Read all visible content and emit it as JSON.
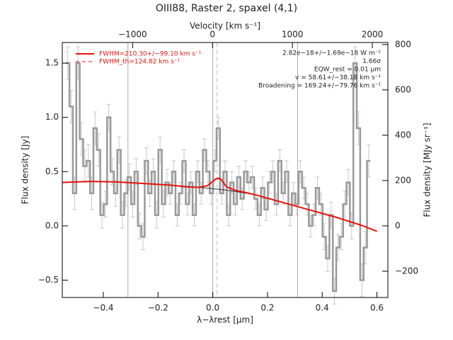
{
  "chart_data": {
    "type": "spectrum",
    "title": "OIII88, Raster 2, spaxel (4,1)",
    "xlabel": "λ−λrest [μm]",
    "ylabel": "Flux density [Jy]",
    "y2label": "Flux density [MJy sr⁻¹]",
    "x2label": "Velocity [km s⁻¹]",
    "xlim": [
      -0.55,
      0.64
    ],
    "ylim": [
      -0.66,
      1.69
    ],
    "y2lim": [
      -316,
      809
    ],
    "x2lim": [
      -1880,
      2195
    ],
    "xticks": [
      {
        "value": -0.4,
        "label": "−0.4"
      },
      {
        "value": -0.2,
        "label": "−0.2"
      },
      {
        "value": 0,
        "label": "0.0"
      },
      0.2,
      0.4,
      0.6
    ],
    "yticks": [
      {
        "value": -0.5,
        "label": "−0.5"
      },
      {
        "value": 0,
        "label": "0.0"
      },
      0.5,
      {
        "value": 1,
        "label": "1.0"
      },
      1.5
    ],
    "y2ticks": [
      {
        "value": -200,
        "label": "−200"
      },
      0,
      200,
      400,
      600,
      800
    ],
    "x2ticks": [
      {
        "value": -1000,
        "label": "−1000"
      },
      0,
      1000,
      2000
    ],
    "vlines": [
      -0.31,
      0,
      0.31
    ],
    "dashed_vline": 0.016,
    "spectrum": {
      "color": "#999999",
      "x": [
        -0.53,
        -0.5175,
        -0.505,
        -0.4925,
        -0.48,
        -0.4675,
        -0.455,
        -0.4425,
        -0.43,
        -0.4175,
        -0.405,
        -0.3925,
        -0.38,
        -0.3675,
        -0.355,
        -0.3425,
        -0.33,
        -0.3175,
        -0.305,
        -0.2925,
        -0.28,
        -0.2675,
        -0.255,
        -0.2425,
        -0.23,
        -0.2175,
        -0.205,
        -0.1925,
        -0.18,
        -0.1675,
        -0.155,
        -0.1425,
        -0.13,
        -0.1175,
        -0.105,
        -0.0925,
        -0.08,
        -0.0675,
        -0.055,
        -0.0425,
        -0.03,
        -0.0175,
        -0.005,
        0.0075,
        0.02,
        0.0325,
        0.045,
        0.0575,
        0.07,
        0.0825,
        0.095,
        0.1075,
        0.12,
        0.1325,
        0.145,
        0.1575,
        0.17,
        0.1825,
        0.195,
        0.2075,
        0.22,
        0.2325,
        0.245,
        0.2575,
        0.27,
        0.2825,
        0.295,
        0.3075,
        0.32,
        0.3325,
        0.345,
        0.3575,
        0.37,
        0.3825,
        0.395,
        0.4075,
        0.42,
        0.4325,
        0.445,
        0.4575,
        0.47,
        0.4825,
        0.495,
        0.5075,
        0.52,
        0.5325,
        0.545,
        0.5575,
        0.57
      ],
      "values": [
        1.5,
        1.1,
        0.3,
        1.5,
        0.8,
        0.55,
        0.6,
        0.3,
        0.9,
        0.7,
        0.1,
        0.2,
        1.0,
        0.5,
        0.3,
        0.7,
        0.1,
        0.3,
        0.45,
        0.2,
        0.5,
        0.0,
        -0.1,
        0.6,
        0.3,
        0.5,
        0.1,
        0.7,
        0.2,
        0.4,
        0.3,
        0.5,
        0.1,
        0.3,
        0.6,
        0.2,
        0.4,
        0.1,
        0.5,
        0.3,
        0.7,
        0.5,
        0.3,
        0.6,
        0.9,
        0.3,
        0.5,
        0.1,
        0.4,
        0.2,
        0.45,
        0.25,
        0.5,
        0.4,
        0.45,
        0.25,
        0.1,
        0.35,
        0.15,
        0.4,
        0.5,
        0.2,
        0.6,
        0.3,
        0.5,
        0.1,
        0.3,
        0.2,
        0.5,
        0.35,
        0.2,
        0.0,
        0.1,
        0.35,
        0.2,
        -0.1,
        -0.3,
        0.1,
        -0.6,
        -0.2,
        -0.1,
        0.2,
        0.4,
        0.0,
        1.5,
        0.9,
        -0.5,
        -0.2,
        0.6
      ],
      "errors": [
        0.15,
        0.15,
        0.15,
        0.15,
        0.15,
        0.15,
        0.15,
        0.15,
        0.15,
        0.15,
        0.12,
        0.12,
        0.12,
        0.12,
        0.12,
        0.12,
        0.12,
        0.12,
        0.12,
        0.12,
        0.12,
        0.12,
        0.12,
        0.12,
        0.12,
        0.12,
        0.12,
        0.12,
        0.12,
        0.12,
        0.1,
        0.1,
        0.1,
        0.1,
        0.1,
        0.1,
        0.1,
        0.1,
        0.1,
        0.1,
        0.1,
        0.1,
        0.1,
        0.1,
        0.1,
        0.1,
        0.1,
        0.1,
        0.1,
        0.1,
        0.1,
        0.1,
        0.1,
        0.1,
        0.1,
        0.1,
        0.1,
        0.1,
        0.1,
        0.1,
        0.1,
        0.1,
        0.1,
        0.1,
        0.1,
        0.1,
        0.1,
        0.1,
        0.1,
        0.1,
        0.1,
        0.1,
        0.1,
        0.1,
        0.1,
        0.12,
        0.12,
        0.12,
        0.12,
        0.12,
        0.12,
        0.12,
        0.12,
        0.12,
        0.15,
        0.15,
        0.15,
        0.15,
        0.15
      ]
    },
    "model": {
      "color": "#e8120c",
      "x": [
        -0.55,
        -0.45,
        -0.35,
        -0.25,
        -0.15,
        -0.1,
        -0.05,
        -0.02,
        0.0,
        0.01,
        0.02,
        0.03,
        0.05,
        0.08,
        0.15,
        0.25,
        0.35,
        0.45,
        0.55,
        0.6
      ],
      "values": [
        0.4,
        0.41,
        0.405,
        0.39,
        0.375,
        0.36,
        0.355,
        0.37,
        0.41,
        0.43,
        0.44,
        0.43,
        0.36,
        0.33,
        0.29,
        0.22,
        0.15,
        0.08,
        0.0,
        -0.05
      ]
    },
    "continuum": {
      "color": "#333333",
      "x": [
        -0.55,
        -0.45,
        -0.35,
        -0.25,
        -0.15,
        -0.05,
        0.05,
        0.15,
        0.25,
        0.35,
        0.45,
        0.55,
        0.6
      ],
      "values": [
        0.4,
        0.41,
        0.405,
        0.39,
        0.375,
        0.355,
        0.33,
        0.29,
        0.22,
        0.15,
        0.08,
        0.0,
        -0.05
      ]
    },
    "legend": [
      "FWHM=210.30+/−99.10 km s⁻¹",
      "FWHM_th=124.82 km s⁻¹"
    ],
    "annotations": [
      "2.82e−18+/−1.69e−18 W m⁻²",
      "1.66σ",
      "EQW_rest = 0.01 μm",
      "v = 58.61+/−38.18 km s⁻¹",
      "Broadening = 169.24+/−79.76 km s⁻¹"
    ]
  }
}
